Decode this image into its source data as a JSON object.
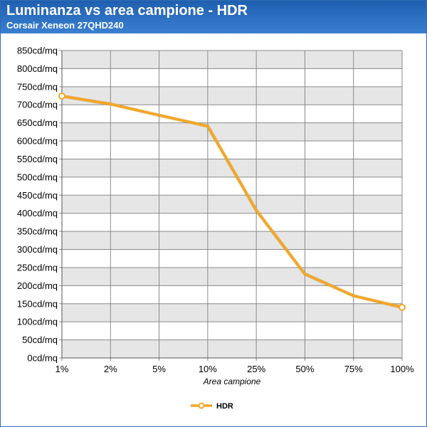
{
  "header": {
    "title": "Luminanza vs area campione - HDR",
    "subtitle": "Corsair Xeneon 27QHD240"
  },
  "colors": {
    "header": "#2a6fc2",
    "series": "#f5a623",
    "band": "#e6e6e6",
    "marker_fill": "#ffffff"
  },
  "chart_data": {
    "type": "line",
    "title": "Luminanza vs area campione - HDR",
    "subtitle": "Corsair Xeneon 27QHD240",
    "xlabel": "Area campione",
    "ylabel": "",
    "categories": [
      "1%",
      "2%",
      "5%",
      "10%",
      "25%",
      "50%",
      "75%",
      "100%"
    ],
    "series": [
      {
        "name": "HDR",
        "values": [
          724,
          702,
          671,
          641,
          408,
          232,
          172,
          140
        ]
      }
    ],
    "ylim": [
      0,
      850
    ],
    "yticks": [
      0,
      50,
      100,
      150,
      200,
      250,
      300,
      350,
      400,
      450,
      500,
      550,
      600,
      650,
      700,
      750,
      800,
      850
    ],
    "y_unit_suffix": "cd/mq",
    "grid": true,
    "alternating_bands": true,
    "markers_on": "first-and-last",
    "legend": "bottom-center"
  }
}
